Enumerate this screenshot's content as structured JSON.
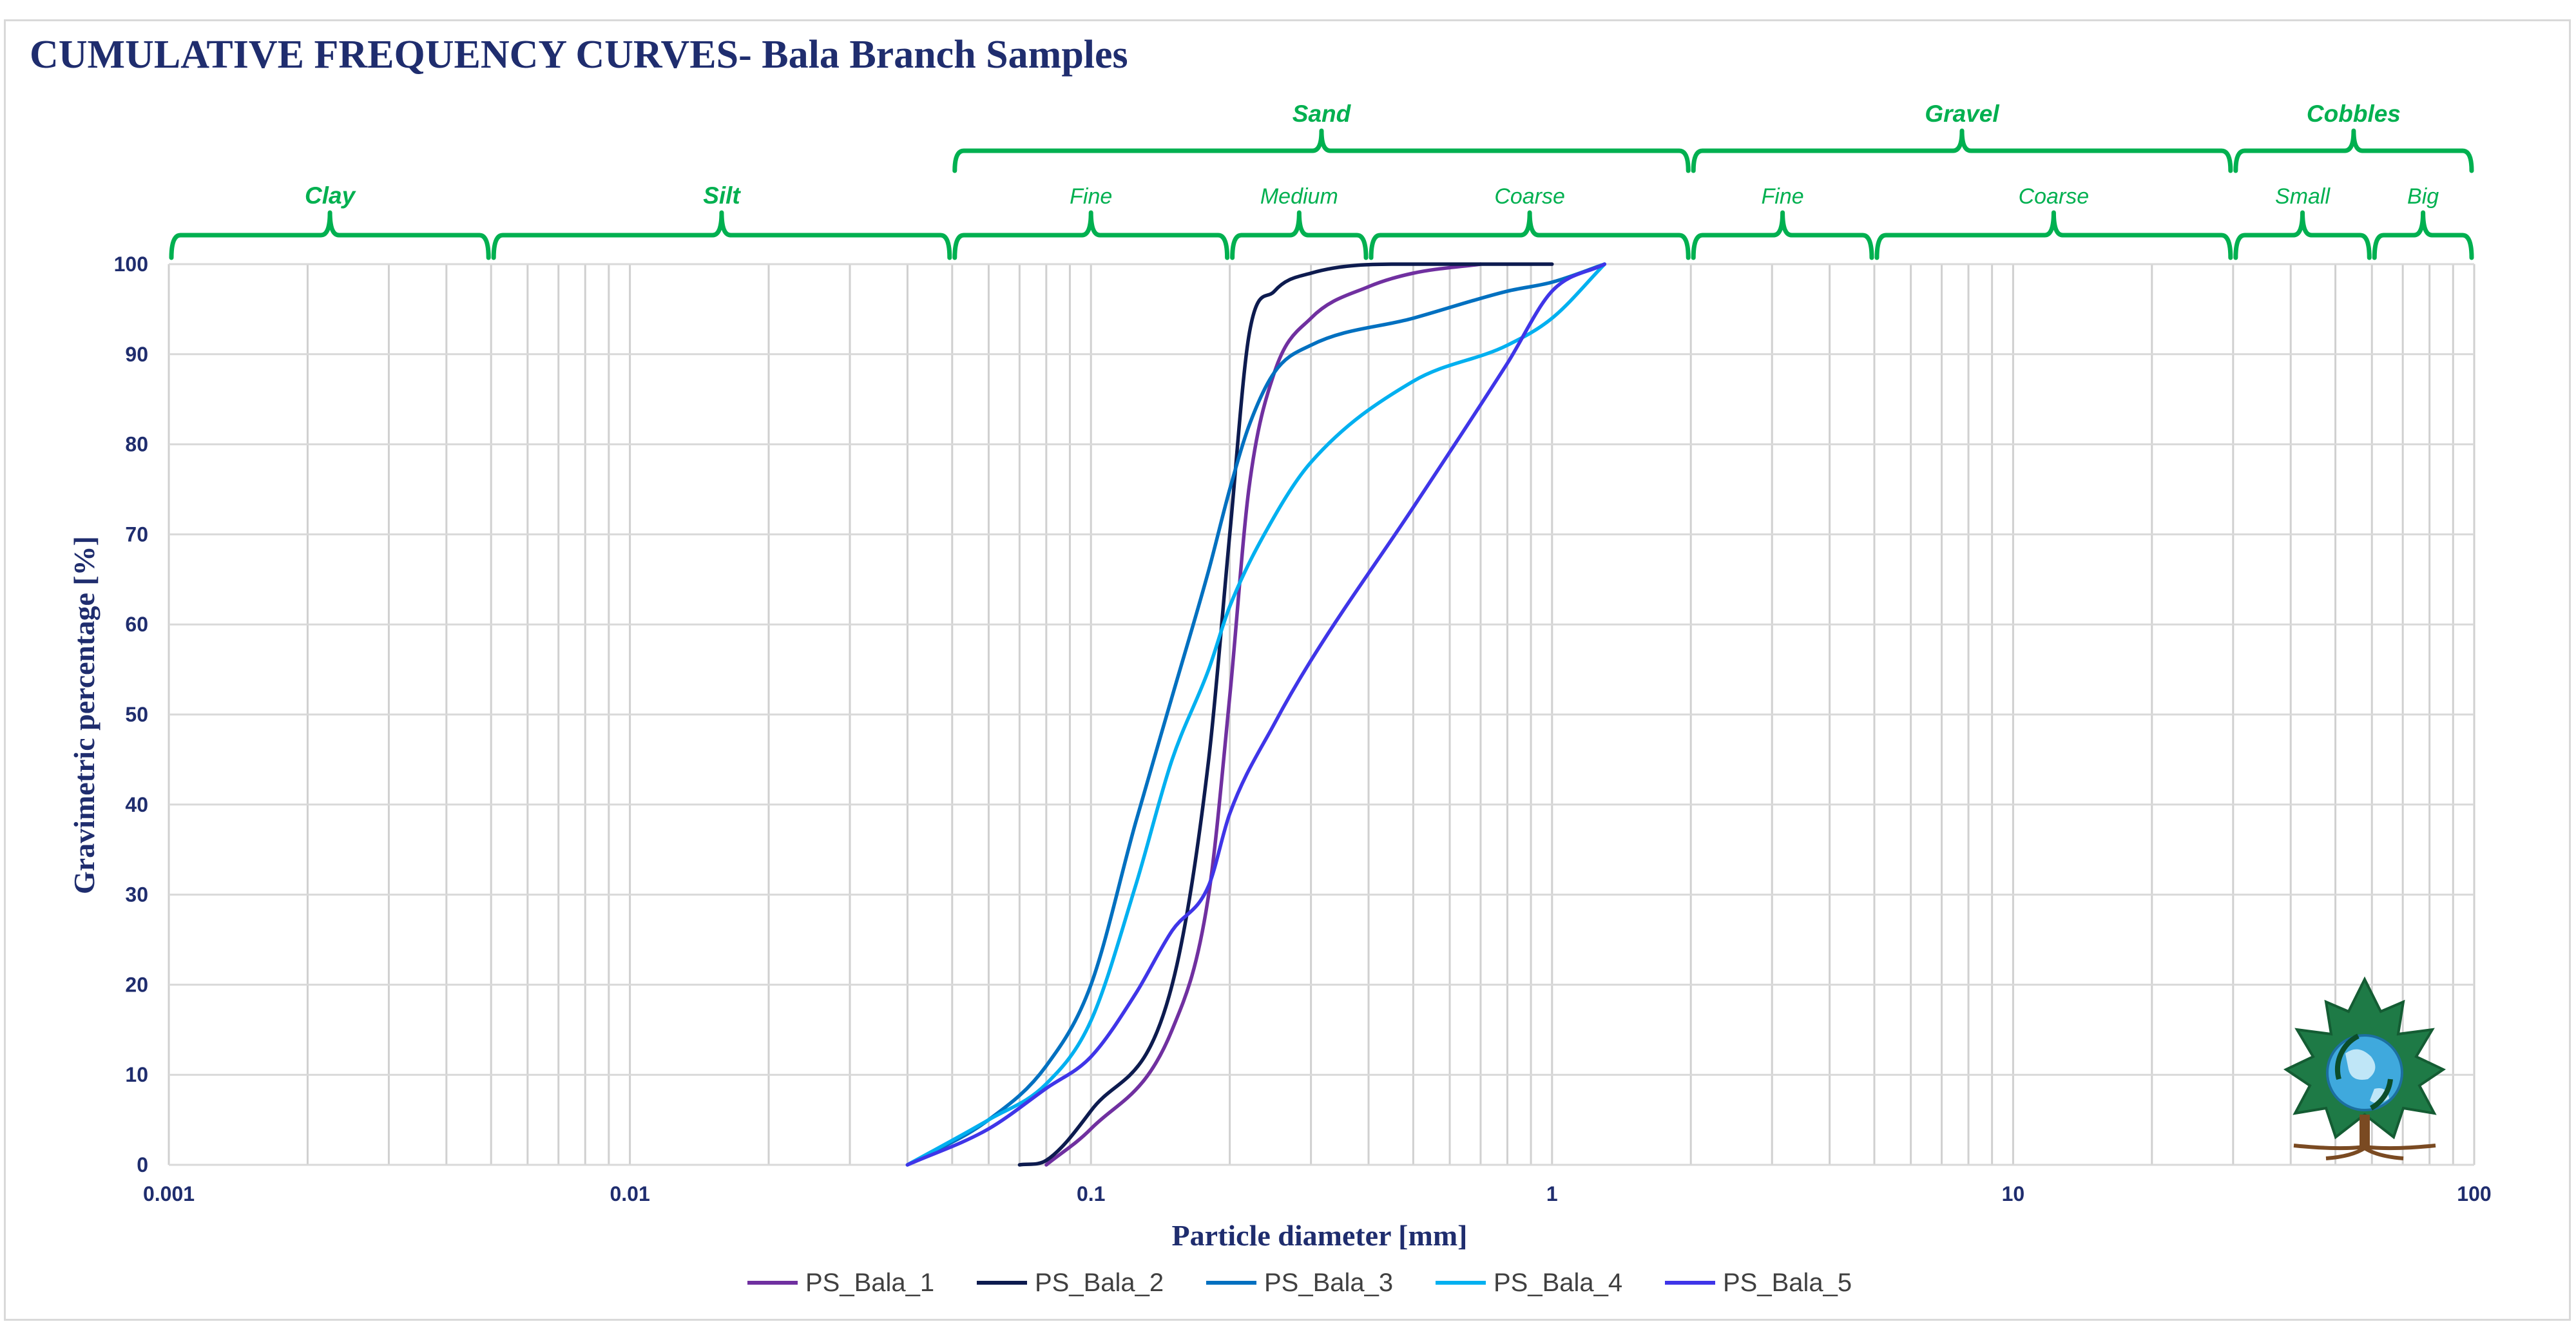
{
  "chart_data": {
    "type": "line",
    "title": "CUMULATIVE FREQUENCY CURVES- Bala Branch Samples",
    "xlabel": "Particle diameter [mm]",
    "ylabel": "Gravimetric percentage [%]",
    "x_scale": "log",
    "xlim": [
      0.001,
      100
    ],
    "ylim": [
      0,
      100
    ],
    "x_ticks": [
      "0.001",
      "0.01",
      "0.1",
      "1",
      "10",
      "100"
    ],
    "y_ticks": [
      "0",
      "10",
      "20",
      "30",
      "40",
      "50",
      "60",
      "70",
      "80",
      "90",
      "100"
    ],
    "grid": true,
    "legend_position": "bottom",
    "series": [
      {
        "name": "PS_Bala_1",
        "color": "#7030a0",
        "x": [
          0.08,
          0.1,
          0.15,
          0.18,
          0.2,
          0.22,
          0.25,
          0.3,
          0.4,
          0.5,
          0.7
        ],
        "y": [
          0,
          4,
          15,
          30,
          52,
          75,
          88,
          94,
          97.5,
          99,
          100
        ]
      },
      {
        "name": "PS_Bala_2",
        "color": "#0d1b4f",
        "x": [
          0.07,
          0.08,
          0.1,
          0.15,
          0.18,
          0.2,
          0.22,
          0.25,
          0.3,
          0.5,
          1.0
        ],
        "y": [
          0,
          0.5,
          6,
          20,
          45,
          70,
          92,
          97,
          99,
          100,
          100
        ]
      },
      {
        "name": "PS_Bala_3",
        "color": "#0070c0",
        "x": [
          0.04,
          0.06,
          0.08,
          0.1,
          0.125,
          0.15,
          0.18,
          0.2,
          0.22,
          0.25,
          0.3,
          0.5,
          0.8,
          1.0,
          1.3
        ],
        "y": [
          0,
          5,
          11,
          20,
          38,
          52,
          66,
          75,
          82,
          88,
          91,
          94,
          97,
          98,
          100
        ]
      },
      {
        "name": "PS_Bala_4",
        "color": "#00b0f0",
        "x": [
          0.04,
          0.06,
          0.08,
          0.1,
          0.125,
          0.15,
          0.18,
          0.2,
          0.25,
          0.3,
          0.5,
          0.8,
          1.0,
          1.3
        ],
        "y": [
          0,
          5,
          9,
          16,
          31,
          45,
          55,
          62,
          72,
          78,
          87,
          91,
          94,
          100
        ]
      },
      {
        "name": "PS_Bala_5",
        "color": "#3f35e8",
        "x": [
          0.04,
          0.06,
          0.08,
          0.1,
          0.125,
          0.15,
          0.18,
          0.2,
          0.25,
          0.3,
          0.5,
          0.8,
          1.0,
          1.3
        ],
        "y": [
          0,
          4,
          8.5,
          12,
          19,
          26,
          31,
          39,
          49,
          56,
          73,
          89,
          97,
          100
        ]
      }
    ],
    "classes": [
      {
        "label": "Clay",
        "from": 0.001,
        "to": 0.005,
        "level": "lower",
        "size": "big"
      },
      {
        "label": "Silt",
        "from": 0.005,
        "to": 0.05,
        "level": "lower",
        "size": "big"
      },
      {
        "label": "Fine",
        "from": 0.05,
        "to": 0.2,
        "level": "lower",
        "size": "small"
      },
      {
        "label": "Medium",
        "from": 0.2,
        "to": 0.4,
        "level": "lower",
        "size": "small"
      },
      {
        "label": "Coarse",
        "from": 0.4,
        "to": 2,
        "level": "lower",
        "size": "small"
      },
      {
        "label": "Fine",
        "from": 2,
        "to": 5,
        "level": "lower",
        "size": "small"
      },
      {
        "label": "Coarse",
        "from": 5,
        "to": 30,
        "level": "lower",
        "size": "small"
      },
      {
        "label": "Small",
        "from": 30,
        "to": 60,
        "level": "lower",
        "size": "small"
      },
      {
        "label": "Big",
        "from": 60,
        "to": 100,
        "level": "lower",
        "size": "small"
      },
      {
        "label": "Sand",
        "from": 0.05,
        "to": 2,
        "level": "upper",
        "size": "big"
      },
      {
        "label": "Gravel",
        "from": 2,
        "to": 30,
        "level": "upper",
        "size": "big"
      },
      {
        "label": "Cobbles",
        "from": 30,
        "to": 100,
        "level": "upper",
        "size": "big"
      }
    ]
  },
  "colors": {
    "title": "#1f2d6e",
    "brace": "#00b050",
    "grid": "#d9d9d9"
  },
  "logo": {
    "name": "leaf-globe-logo"
  }
}
